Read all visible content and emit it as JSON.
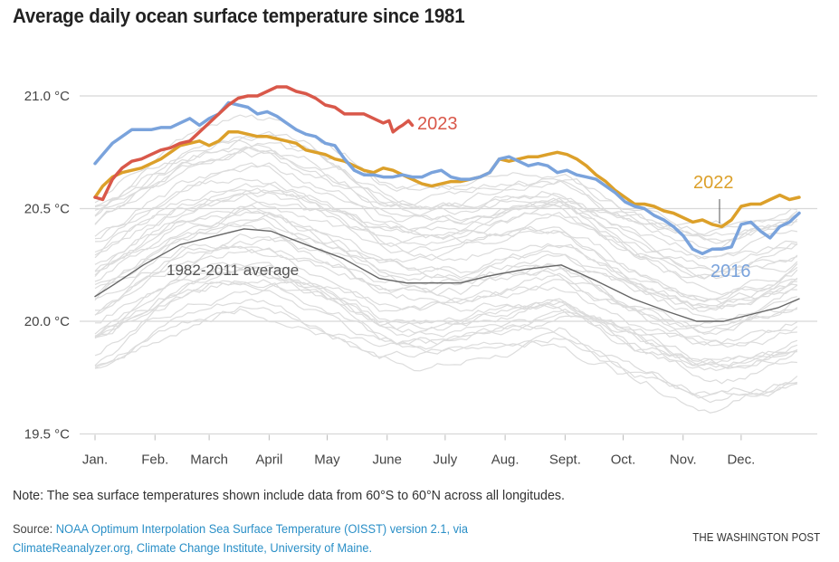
{
  "title": "Average daily ocean surface temperature since 1981",
  "note": "Note: The sea surface temperatures shown include data from 60°S to 60°N across all longitudes.",
  "source_prefix": "Source: ",
  "source_link_1": "NOAA Optimum Interpolation Sea Surface Temperature (OISST) version 2.1, via",
  "source_link_2": "ClimateReanalyzer.org, Climate Change Institute, University of Maine.",
  "credit": "THE WASHINGTON POST",
  "colors": {
    "y2023": "#d9584a",
    "y2016": "#7aa3dc",
    "y2022": "#dca02a",
    "average": "#666666",
    "other_years": "#dcdcdc",
    "grid": "#d8d8d8"
  },
  "chart_data": {
    "type": "line",
    "title": "Average daily ocean surface temperature since 1981",
    "xlabel": "",
    "ylabel": "",
    "x_unit": "day of year",
    "xlim": [
      1,
      365
    ],
    "ylim": [
      19.5,
      21.1
    ],
    "grid": true,
    "y_ticks": [
      {
        "value": 21.0,
        "label": "21.0 °C"
      },
      {
        "value": 20.5,
        "label": "20.5 °C"
      },
      {
        "value": 20.0,
        "label": "20.0 °C"
      },
      {
        "value": 19.5,
        "label": "19.5 °C"
      }
    ],
    "x_ticks": [
      {
        "value": 1,
        "label": "Jan."
      },
      {
        "value": 32,
        "label": "Feb."
      },
      {
        "value": 60,
        "label": "March"
      },
      {
        "value": 91,
        "label": "April"
      },
      {
        "value": 121,
        "label": "May"
      },
      {
        "value": 152,
        "label": "June"
      },
      {
        "value": 182,
        "label": "July"
      },
      {
        "value": 213,
        "label": "Aug."
      },
      {
        "value": 244,
        "label": "Sept."
      },
      {
        "value": 274,
        "label": "Oct."
      },
      {
        "value": 305,
        "label": "Nov."
      },
      {
        "value": 335,
        "label": "Dec."
      }
    ],
    "series": [
      {
        "name": "2023",
        "label": "2023",
        "color": "#d9584a",
        "highlight": true,
        "x": [
          1,
          5,
          10,
          15,
          20,
          25,
          30,
          35,
          40,
          45,
          50,
          55,
          60,
          65,
          70,
          75,
          80,
          85,
          90,
          95,
          100,
          105,
          110,
          115,
          120,
          125,
          130,
          135,
          140,
          145,
          150,
          153,
          155,
          158,
          160,
          163,
          165
        ],
        "values": [
          20.55,
          20.54,
          20.63,
          20.68,
          20.71,
          20.72,
          20.74,
          20.76,
          20.77,
          20.79,
          20.8,
          20.84,
          20.88,
          20.92,
          20.96,
          20.99,
          21.0,
          21.0,
          21.02,
          21.04,
          21.04,
          21.02,
          21.01,
          20.99,
          20.96,
          20.95,
          20.92,
          20.92,
          20.92,
          20.9,
          20.88,
          20.89,
          20.84,
          20.86,
          20.87,
          20.89,
          20.87
        ]
      },
      {
        "name": "2016",
        "label": "2016",
        "color": "#7aa3dc",
        "highlight": true,
        "x": [
          1,
          5,
          10,
          15,
          20,
          25,
          30,
          35,
          40,
          45,
          50,
          55,
          60,
          65,
          70,
          75,
          80,
          85,
          90,
          95,
          100,
          105,
          110,
          115,
          120,
          125,
          130,
          135,
          140,
          145,
          150,
          155,
          160,
          165,
          170,
          175,
          180,
          185,
          190,
          195,
          200,
          205,
          210,
          215,
          220,
          225,
          230,
          235,
          240,
          245,
          250,
          255,
          260,
          265,
          270,
          275,
          280,
          285,
          290,
          295,
          300,
          305,
          310,
          315,
          320,
          325,
          330,
          335,
          340,
          345,
          350,
          355,
          360,
          365
        ],
        "values": [
          20.7,
          20.74,
          20.79,
          20.82,
          20.85,
          20.85,
          20.85,
          20.86,
          20.86,
          20.88,
          20.9,
          20.87,
          20.9,
          20.92,
          20.97,
          20.96,
          20.95,
          20.92,
          20.93,
          20.91,
          20.88,
          20.85,
          20.83,
          20.82,
          20.79,
          20.78,
          20.72,
          20.67,
          20.65,
          20.65,
          20.64,
          20.64,
          20.65,
          20.64,
          20.64,
          20.66,
          20.67,
          20.64,
          20.63,
          20.63,
          20.64,
          20.66,
          20.72,
          20.73,
          20.71,
          20.69,
          20.7,
          20.69,
          20.66,
          20.67,
          20.65,
          20.64,
          20.63,
          20.6,
          20.57,
          20.53,
          20.51,
          20.5,
          20.47,
          20.45,
          20.42,
          20.38,
          20.32,
          20.3,
          20.32,
          20.32,
          20.33,
          20.43,
          20.44,
          20.4,
          20.37,
          20.42,
          20.44,
          20.48
        ]
      },
      {
        "name": "2022",
        "label": "2022",
        "color": "#dca02a",
        "highlight": true,
        "x": [
          1,
          5,
          10,
          15,
          20,
          25,
          30,
          35,
          40,
          45,
          50,
          55,
          60,
          65,
          70,
          75,
          80,
          85,
          90,
          95,
          100,
          105,
          110,
          115,
          120,
          125,
          130,
          135,
          140,
          145,
          150,
          155,
          160,
          165,
          170,
          175,
          180,
          185,
          190,
          195,
          200,
          205,
          210,
          215,
          220,
          225,
          230,
          235,
          240,
          245,
          250,
          255,
          260,
          265,
          270,
          275,
          280,
          285,
          290,
          295,
          300,
          305,
          310,
          315,
          320,
          325,
          330,
          335,
          340,
          345,
          350,
          355,
          360,
          365
        ],
        "values": [
          20.55,
          20.6,
          20.64,
          20.66,
          20.67,
          20.68,
          20.7,
          20.72,
          20.75,
          20.78,
          20.79,
          20.8,
          20.78,
          20.8,
          20.84,
          20.84,
          20.83,
          20.82,
          20.82,
          20.81,
          20.8,
          20.79,
          20.76,
          20.75,
          20.74,
          20.72,
          20.71,
          20.69,
          20.67,
          20.66,
          20.68,
          20.67,
          20.65,
          20.63,
          20.61,
          20.6,
          20.61,
          20.62,
          20.62,
          20.63,
          20.64,
          20.66,
          20.72,
          20.71,
          20.72,
          20.73,
          20.73,
          20.74,
          20.75,
          20.74,
          20.72,
          20.69,
          20.65,
          20.62,
          20.58,
          20.55,
          20.52,
          20.52,
          20.51,
          20.49,
          20.48,
          20.46,
          20.44,
          20.45,
          20.43,
          20.42,
          20.45,
          20.51,
          20.52,
          20.52,
          20.54,
          20.56,
          20.54,
          20.55
        ]
      },
      {
        "name": "1982-2011 average",
        "label": "1982-2011 average",
        "color": "#666666",
        "highlight": false,
        "x": [
          1,
          12,
          26,
          45,
          59,
          78,
          92,
          110,
          129,
          148,
          162,
          190,
          204,
          223,
          242,
          260,
          279,
          298,
          312,
          326,
          340,
          354,
          365
        ],
        "values": [
          20.11,
          20.17,
          20.25,
          20.34,
          20.37,
          20.41,
          20.4,
          20.34,
          20.28,
          20.19,
          20.17,
          20.17,
          20.2,
          20.23,
          20.25,
          20.18,
          20.1,
          20.04,
          20.0,
          20.0,
          20.03,
          20.06,
          20.1
        ]
      }
    ],
    "annotations": [
      {
        "text": "2023",
        "near_series": "2023"
      },
      {
        "text": "2022",
        "near_series": "2022",
        "leader_line_day": 323
      },
      {
        "text": "2016",
        "near_series": "2016"
      },
      {
        "text": "1982-2011 average",
        "near_series": "1982-2011 average"
      }
    ],
    "background_series_note": "Individual years 1981-2021 shown as thin light-gray lines, ranging roughly 19.65 °C to 20.85 °C"
  }
}
